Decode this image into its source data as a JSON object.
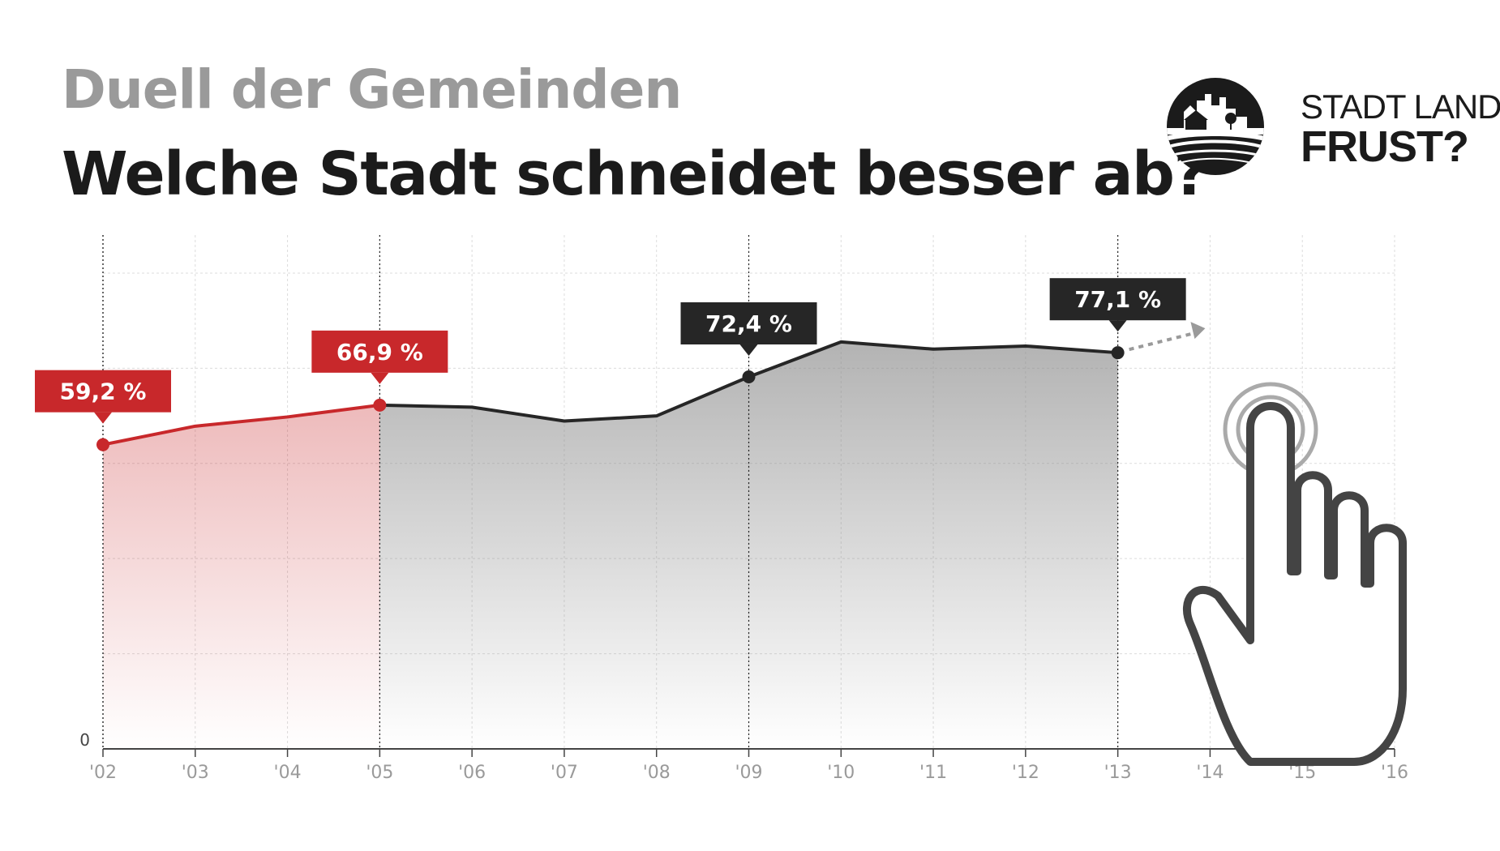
{
  "header": {
    "kicker": "Duell der Gemeinden",
    "headline": "Welche Stadt schneidet besser ab?"
  },
  "logo": {
    "line1": "STADT LAND",
    "line2": "FRUST?",
    "icon": "village-landscape-icon"
  },
  "pointer_icon": "hand-pointer-icon",
  "colors": {
    "highlight": "#c8282b",
    "dark": "#262626",
    "grey_fill": "#b9b9b9",
    "grid": "#dcdcdc"
  },
  "chart_data": {
    "type": "area",
    "x": [
      "'02",
      "'03",
      "'04",
      "'05",
      "'06",
      "'07",
      "'08",
      "'09",
      "'10",
      "'11",
      "'12",
      "'13",
      "'14",
      "'15",
      "'16"
    ],
    "y_tick_labels": [
      "0"
    ],
    "ylim": [
      0,
      100
    ],
    "grid": true,
    "series": [
      {
        "segment": "highlight",
        "values": [
          59.2,
          62.8,
          64.6,
          66.9,
          null,
          null,
          null,
          null,
          null,
          null,
          null,
          null,
          null,
          null,
          null
        ]
      },
      {
        "segment": "main",
        "values": [
          null,
          null,
          null,
          66.9,
          66.5,
          63.8,
          64.8,
          72.4,
          79.2,
          77.8,
          78.4,
          77.1,
          null,
          null,
          null
        ]
      }
    ],
    "annotations": [
      {
        "x": "'02",
        "label": "59,2 %",
        "style": "highlight"
      },
      {
        "x": "'05",
        "label": "66,9 %",
        "style": "highlight"
      },
      {
        "x": "'09",
        "label": "72,4 %",
        "style": "dark"
      },
      {
        "x": "'13",
        "label": "77,1 %",
        "style": "dark"
      }
    ]
  }
}
